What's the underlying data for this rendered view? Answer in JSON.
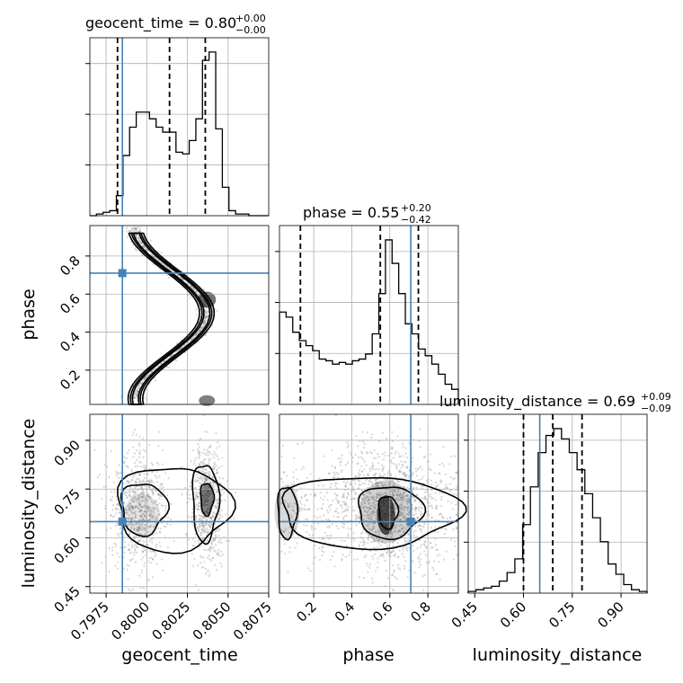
{
  "chart_data": {
    "type": "corner",
    "colors": {
      "truth": "#4682b4",
      "hist": "#000000",
      "grid": "#b0b0b0",
      "samples": "#8c8c8c"
    },
    "params": [
      {
        "name": "geocent_time",
        "axis_label": "geocent_time",
        "range": [
          0.7965,
          0.8075
        ],
        "ticks": [
          "0.7975",
          "0.8000",
          "0.8025",
          "0.8050",
          "0.8075"
        ],
        "truth": 0.7985,
        "quantiles": [
          0.7982,
          0.8014,
          0.8036
        ],
        "title": {
          "main": "geocent_time = 0.80",
          "plus": "+0.00",
          "minus": "−0.00"
        },
        "hist": {
          "range": [
            0.7965,
            0.8075
          ],
          "heights": [
            0,
            1,
            2,
            3,
            12,
            36,
            53,
            62,
            62,
            58,
            53,
            50,
            50,
            38,
            37,
            45,
            58,
            93,
            98,
            52,
            17,
            3,
            1,
            1,
            0,
            0,
            0
          ]
        }
      },
      {
        "name": "phase",
        "axis_label": "phase",
        "range": [
          0.02,
          0.96
        ],
        "ticks": [
          "0.2",
          "0.4",
          "0.6",
          "0.8"
        ],
        "truth": 0.71,
        "quantiles": [
          0.13,
          0.55,
          0.75
        ],
        "title": {
          "main": "phase = 0.55",
          "plus": "+0.20",
          "minus": "−0.42"
        },
        "hist": {
          "range": [
            0.02,
            0.96
          ],
          "heights": [
            55,
            52,
            43,
            38,
            35,
            32,
            27,
            26,
            24,
            25,
            24,
            26,
            27,
            30,
            42,
            66,
            98,
            84,
            66,
            48,
            42,
            33,
            29,
            24,
            18,
            12,
            9
          ]
        }
      },
      {
        "name": "luminosity_distance",
        "axis_label": "luminosity_distance",
        "range": [
          0.43,
          0.98
        ],
        "ticks": [
          "0.45",
          "0.60",
          "0.75",
          "0.90"
        ],
        "truth": 0.65,
        "quantiles": [
          0.6,
          0.69,
          0.78
        ],
        "title": {
          "main": "luminosity_distance = 0.69",
          "plus": "+0.09",
          "minus": "−0.09"
        },
        "hist": {
          "range": [
            0.43,
            0.98
          ],
          "heights": [
            1,
            2,
            3,
            4,
            7,
            12,
            20,
            40,
            62,
            82,
            92,
            96,
            90,
            82,
            72,
            58,
            44,
            30,
            17,
            11,
            5,
            2,
            1
          ]
        }
      }
    ]
  }
}
